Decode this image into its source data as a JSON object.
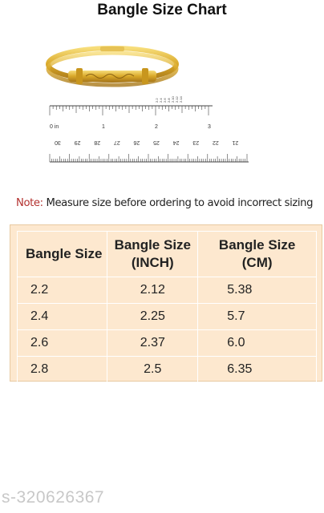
{
  "title": "Bangle Size Chart",
  "ruler": {
    "inch_labels": [
      "0 in",
      "1",
      "2",
      "3"
    ],
    "small_labels": [
      "2.2",
      "2.4",
      "2.6",
      "2.8",
      "2.10",
      "2.12",
      "2.14"
    ],
    "cm_labels": [
      "30",
      "29",
      "28",
      "27",
      "26",
      "25",
      "24",
      "23",
      "22",
      "21"
    ]
  },
  "note": {
    "label": "Note:",
    "text": " Measure size before ordering to avoid incorrect sizing"
  },
  "table": {
    "headers": [
      [
        "Bangle Size"
      ],
      [
        "Bangle Size",
        "(INCH)"
      ],
      [
        "Bangle Size",
        "(CM)"
      ]
    ],
    "rows": [
      [
        "2.2",
        "2.12",
        "5.38"
      ],
      [
        "2.4",
        "2.25",
        "5.7"
      ],
      [
        "2.6",
        "2.37",
        "6.0"
      ],
      [
        "2.8",
        "2.5",
        "6.35"
      ]
    ]
  },
  "sku": "s-320626367",
  "colors": {
    "table_bg": "#fde8cf",
    "note_label": "#b3312f",
    "gold": "#d9a829"
  }
}
